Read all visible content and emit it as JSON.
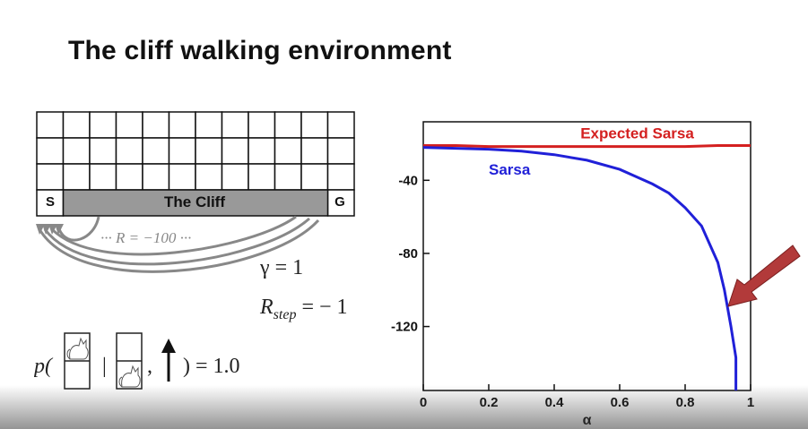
{
  "slide": {
    "title": "The cliff walking environment"
  },
  "gridworld": {
    "start_label": "S",
    "goal_label": "G",
    "cliff_label": "The Cliff",
    "reward_label": "··· R = −100 ···",
    "rows": 4,
    "cols": 12
  },
  "equations": {
    "gamma": "γ = 1",
    "r_step": "R",
    "r_step_sub": "step",
    "r_step_value": " = − 1",
    "prob_prefix": "p(",
    "prob_sep": "|",
    "prob_comma": ",",
    "prob_suffix": ") = 1.0"
  },
  "colors": {
    "expected_sarsa": "#d42020",
    "sarsa": "#2020d8",
    "arrow": "#b23a3a",
    "cliff_fill": "#999999"
  },
  "chart_data": {
    "type": "line",
    "xlabel": "α",
    "ylabel": "",
    "xlim": [
      0,
      1
    ],
    "ylim": [
      -155,
      -8
    ],
    "x_ticks": [
      "0",
      "0.2",
      "0.4",
      "0.6",
      "0.8",
      "1"
    ],
    "y_ticks": [
      "-40",
      "-80",
      "-120"
    ],
    "series": [
      {
        "name": "Expected Sarsa",
        "x": [
          0,
          0.1,
          0.2,
          0.3,
          0.4,
          0.5,
          0.6,
          0.7,
          0.8,
          0.9,
          1.0
        ],
        "y": [
          -21,
          -21,
          -21.5,
          -21.5,
          -21.5,
          -21.5,
          -21.5,
          -21.5,
          -21.5,
          -21,
          -21
        ]
      },
      {
        "name": "Sarsa",
        "x": [
          0,
          0.1,
          0.2,
          0.3,
          0.4,
          0.5,
          0.6,
          0.65,
          0.7,
          0.75,
          0.8,
          0.85,
          0.9,
          0.92,
          0.94,
          0.955,
          0.955
        ],
        "y": [
          -22,
          -22.5,
          -23,
          -24,
          -26,
          -29,
          -34,
          -38,
          -42,
          -47,
          -55,
          -65,
          -85,
          -100,
          -120,
          -137,
          -155
        ]
      }
    ]
  }
}
